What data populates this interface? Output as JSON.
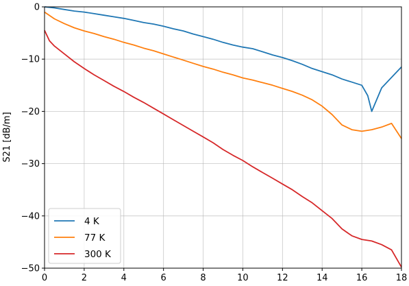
{
  "chart_data": {
    "type": "line",
    "title": "",
    "xlabel": "",
    "ylabel": "S21 [dB/m]",
    "xlim": [
      0,
      18
    ],
    "ylim": [
      -50,
      0
    ],
    "xticks": [
      0,
      2,
      4,
      6,
      8,
      10,
      12,
      14,
      16,
      18
    ],
    "yticks": [
      0,
      -10,
      -20,
      -30,
      -40,
      -50
    ],
    "xtick_labels": [
      "0",
      "2",
      "4",
      "6",
      "8",
      "10",
      "12",
      "14",
      "16",
      "18"
    ],
    "ytick_labels": [
      "0",
      "−10",
      "−20",
      "−30",
      "−40",
      "−50"
    ],
    "grid": true,
    "legend_position": "bottom-left",
    "series": [
      {
        "name": "4 K",
        "color": "#1f77b4",
        "x": [
          0,
          0.5,
          1,
          1.5,
          2,
          2.5,
          3,
          3.5,
          4,
          4.5,
          5,
          5.5,
          6,
          6.5,
          7,
          7.5,
          8,
          8.5,
          9,
          9.5,
          10,
          10.5,
          11,
          11.5,
          12,
          12.5,
          13,
          13.5,
          14,
          14.5,
          15,
          15.5,
          16,
          16.3,
          16.5,
          17,
          17.5,
          18
        ],
        "y": [
          0,
          -0.2,
          -0.5,
          -0.8,
          -1.0,
          -1.3,
          -1.6,
          -1.9,
          -2.2,
          -2.6,
          -3.0,
          -3.3,
          -3.7,
          -4.2,
          -4.6,
          -5.2,
          -5.7,
          -6.2,
          -6.8,
          -7.3,
          -7.7,
          -8.0,
          -8.6,
          -9.2,
          -9.7,
          -10.3,
          -11.0,
          -11.8,
          -12.4,
          -13.0,
          -13.8,
          -14.4,
          -15.0,
          -17.0,
          -20.0,
          -15.5,
          -13.5,
          -11.5
        ]
      },
      {
        "name": "77 K",
        "color": "#ff7f0e",
        "x": [
          0,
          0.5,
          1,
          1.5,
          2,
          2.5,
          3,
          3.5,
          4,
          4.5,
          5,
          5.5,
          6,
          6.5,
          7,
          7.5,
          8,
          8.5,
          9,
          9.5,
          10,
          10.5,
          11,
          11.5,
          12,
          12.5,
          13,
          13.5,
          14,
          14.5,
          15,
          15.5,
          16,
          16.5,
          17,
          17.5,
          18
        ],
        "y": [
          -1.0,
          -2.3,
          -3.2,
          -4.0,
          -4.6,
          -5.1,
          -5.7,
          -6.2,
          -6.8,
          -7.3,
          -7.9,
          -8.4,
          -9.0,
          -9.6,
          -10.2,
          -10.8,
          -11.4,
          -11.9,
          -12.5,
          -13.0,
          -13.6,
          -14.0,
          -14.5,
          -15.0,
          -15.6,
          -16.2,
          -16.9,
          -17.8,
          -19.0,
          -20.6,
          -22.6,
          -23.5,
          -23.8,
          -23.5,
          -23.0,
          -22.3,
          -25.2
        ]
      },
      {
        "name": "300 K",
        "color": "#d62728",
        "x": [
          0,
          0.25,
          0.5,
          1,
          1.5,
          2,
          2.5,
          3,
          3.5,
          4,
          4.5,
          5,
          5.5,
          6,
          6.5,
          7,
          7.5,
          8,
          8.5,
          9,
          9.5,
          10,
          10.5,
          11,
          11.5,
          12,
          12.5,
          13,
          13.5,
          14,
          14.5,
          15,
          15.5,
          16,
          16.5,
          17,
          17.5,
          18
        ],
        "y": [
          -4.5,
          -6.5,
          -7.5,
          -9.0,
          -10.5,
          -11.8,
          -13.0,
          -14.1,
          -15.2,
          -16.2,
          -17.3,
          -18.3,
          -19.4,
          -20.5,
          -21.6,
          -22.7,
          -23.8,
          -24.9,
          -26.0,
          -27.3,
          -28.4,
          -29.4,
          -30.6,
          -31.7,
          -32.8,
          -33.9,
          -35.0,
          -36.3,
          -37.5,
          -39.0,
          -40.5,
          -42.5,
          -43.8,
          -44.5,
          -44.8,
          -45.5,
          -46.5,
          -49.8
        ]
      }
    ]
  }
}
